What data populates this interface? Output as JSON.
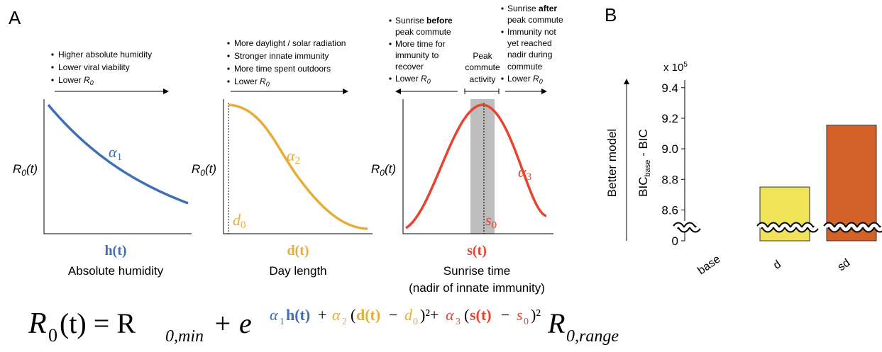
{
  "panel_labels": {
    "a": "A",
    "b": "B"
  },
  "panel_a": {
    "humidity": {
      "bullets": [
        "Higher absolute humidity",
        "Lower viral viability",
        "Lower"
      ],
      "r": "R",
      "r_sub": "0",
      "y_label": {
        "r": "R",
        "sub": "0",
        "rest": "(t)"
      },
      "curve_label": {
        "alpha": "α",
        "sub": "1"
      },
      "x_var": "h(t)",
      "x_label": "Absolute humidity"
    },
    "day": {
      "bullets": [
        "More daylight / solar radiation",
        "Stronger innate immunity",
        "More time spent outdoors",
        "Lower"
      ],
      "r": "R",
      "r_sub": "0",
      "y_label": {
        "r": "R",
        "sub": "0",
        "rest": "(t)"
      },
      "curve_label": {
        "alpha": "α",
        "sub": "2"
      },
      "offset": {
        "sym": "d",
        "sub": "0"
      },
      "x_var": "d(t)",
      "x_label": "Day length"
    },
    "sunrise": {
      "left": {
        "first": "Sunrise",
        "bold": "before",
        "second": "peak commute",
        "more": [
          "More time for",
          "immunity to",
          "recover"
        ],
        "lower": "Lower",
        "r": "R",
        "r_sub": "0"
      },
      "peak": [
        "Peak",
        "commute",
        "activity"
      ],
      "right": {
        "first": "Sunrise",
        "bold": "after",
        "second": "peak commute",
        "more": [
          "Immunity not",
          "yet reached",
          "nadir during",
          "commute"
        ],
        "lower": "Lower",
        "r": "R",
        "r_sub": "0"
      },
      "y_label": {
        "r": "R",
        "sub": "0",
        "rest": "(t)"
      },
      "curve_label": {
        "alpha": "α",
        "sub": "3"
      },
      "offset": {
        "sym": "s",
        "sub": "0"
      },
      "x_var": "s(t)",
      "x_label": [
        "Sunrise time",
        "(nadir of innate immunity)"
      ]
    }
  },
  "equation": [
    "R",
    "0",
    "(t) = R",
    "0,min",
    "+ e",
    "α",
    "1",
    "h(t)",
    "+",
    "α",
    "2",
    "(",
    "d(t)",
    "−",
    "d",
    "0",
    ")²+",
    "α",
    "3",
    "(",
    "s(t)",
    "−",
    "s",
    "0",
    ")²",
    "R",
    "0,range"
  ],
  "chart_data": {
    "type": "bar",
    "y_label_outer": "Better model",
    "y_label": {
      "main": "BIC",
      "sub": "base",
      "rest": " - BIC"
    },
    "multiplier": {
      "base": "x 10",
      "exp": "5"
    },
    "categories": [
      "base",
      "d",
      "sd"
    ],
    "values": [
      0,
      8.75,
      9.155
    ],
    "colors": [
      "#444444",
      "#f0e35a",
      "#d2612a"
    ],
    "ylim": [
      8.5,
      9.45
    ],
    "yticks": [
      0,
      8.6,
      8.8,
      {
        "value": 9,
        "label": "9.0"
      },
      9.2,
      9.4
    ],
    "axis_break": true
  }
}
